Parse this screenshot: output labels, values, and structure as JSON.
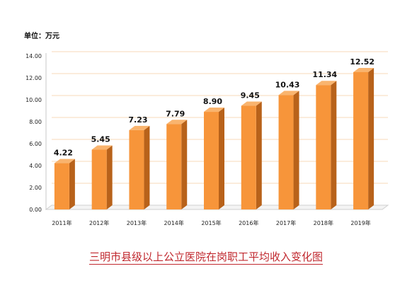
{
  "unit_text": "单位：万元",
  "chart_data": {
    "type": "bar",
    "title": "三明市县级以上公立医院在岗职工平均收入变化图",
    "ylabel": "单位：万元",
    "xlabel": "",
    "categories": [
      "2011年",
      "2012年",
      "2013年",
      "2014年",
      "2015年",
      "2016年",
      "2017年",
      "2018年",
      "2019年"
    ],
    "values": [
      4.22,
      5.45,
      7.23,
      7.79,
      8.9,
      9.45,
      10.43,
      11.34,
      12.52
    ],
    "value_labels": [
      "4.22",
      "5.45",
      "7.23",
      "7.79",
      "8.90",
      "9.45",
      "10.43",
      "11.34",
      "12.52"
    ],
    "ylim": [
      0,
      14
    ],
    "yticks": [
      "0.00",
      "2.00",
      "4.00",
      "6.00",
      "8.00",
      "10.00",
      "12.00",
      "14.00"
    ],
    "grid": true,
    "legend": "none",
    "colors": {
      "bar_front": "#f7953a",
      "bar_side": "#b8621a",
      "bar_top": "#f9b46e",
      "grid": "#f7d9b8"
    }
  }
}
